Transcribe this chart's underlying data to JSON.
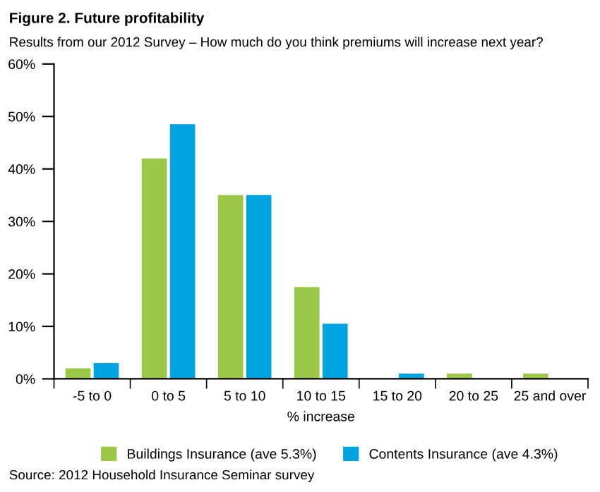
{
  "chart_data": {
    "type": "bar",
    "title": "Figure 2. Future profitability",
    "subtitle": "Results from our 2012 Survey – How much do you think premiums will increase next year?",
    "xlabel": "% increase",
    "categories": [
      "-5 to 0",
      "0 to 5",
      "5 to 10",
      "10 to 15",
      "15 to 20",
      "20 to 25",
      "25 and over"
    ],
    "series": [
      {
        "name": "Buildings Insurance (ave 5.3%)",
        "color": "#9bc848",
        "values": [
          2,
          42,
          35,
          17.5,
          0,
          1,
          1
        ]
      },
      {
        "name": "Contents Insurance (ave 4.3%)",
        "color": "#00a3e0",
        "values": [
          3,
          48.5,
          35,
          10.5,
          1,
          0,
          0
        ]
      }
    ],
    "ylim": [
      0,
      60
    ],
    "yticks": [
      {
        "value": 0,
        "label": "0%"
      },
      {
        "value": 10,
        "label": "10%"
      },
      {
        "value": 20,
        "label": "20%"
      },
      {
        "value": 30,
        "label": "30%"
      },
      {
        "value": 40,
        "label": "40%"
      },
      {
        "value": 50,
        "label": "50%"
      },
      {
        "value": 60,
        "label": "60%"
      }
    ],
    "grid": false,
    "legend": "bottom",
    "annotations": [
      "Source: 2012 Household Insurance Seminar survey"
    ]
  }
}
